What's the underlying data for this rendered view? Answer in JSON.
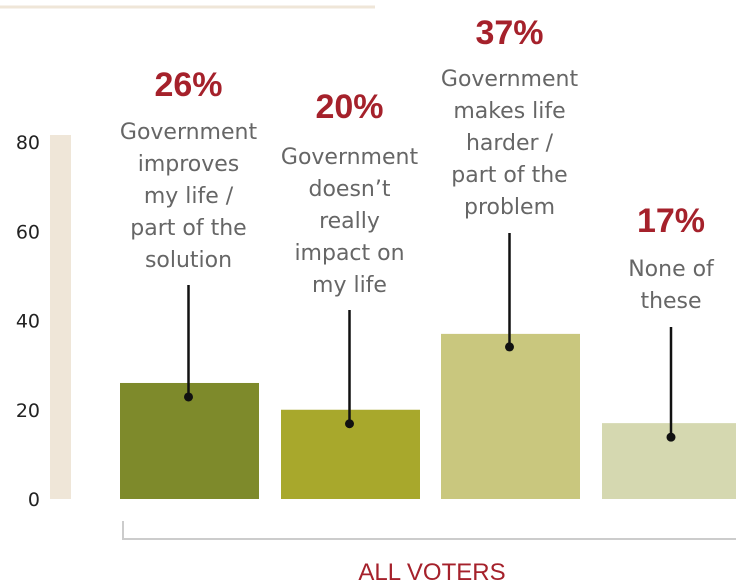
{
  "chart_data": {
    "type": "bar",
    "categories": [
      "Government improves my life / part of the solution",
      "Government doesn’t really impact on my life",
      "Government makes life harder / part of the problem",
      "None of these"
    ],
    "category_lines": [
      [
        "Government",
        "improves",
        "my life /",
        "part of the",
        "solution"
      ],
      [
        "Government",
        "doesn’t",
        "really",
        "impact on",
        "my life"
      ],
      [
        "Government",
        "makes life",
        "harder /",
        "part of the",
        "problem"
      ],
      [
        "None of",
        "these"
      ]
    ],
    "values": [
      26,
      20,
      37,
      17
    ],
    "value_labels": [
      "26%",
      "20%",
      "37%",
      "17%"
    ],
    "group_label": "ALL VOTERS",
    "yticks": [
      0,
      20,
      40,
      60,
      80
    ],
    "ylim": [
      0,
      80
    ],
    "colors": [
      "#7e8a2b",
      "#a8a82c",
      "#c9c77e",
      "#d5d8b0"
    ],
    "axis_band_color": "#efe6d8",
    "grid": false
  }
}
